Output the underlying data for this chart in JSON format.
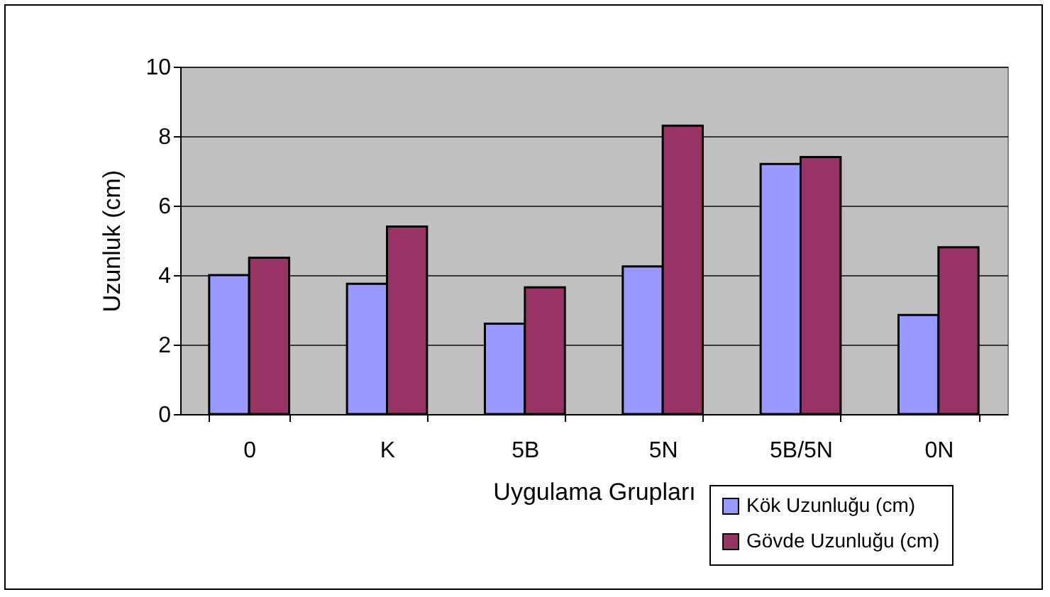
{
  "chart_data": {
    "type": "bar",
    "xlabel": "Uygulama Grupları",
    "ylabel": "Uzunluk (cm)",
    "categories": [
      "0",
      "K",
      "5B",
      "5N",
      "5B/5N",
      "0N"
    ],
    "series": [
      {
        "name": "Kök Uzunluğu (cm)",
        "color": "#9999ff",
        "values": [
          4.0,
          3.75,
          2.6,
          4.25,
          7.2,
          2.85
        ]
      },
      {
        "name": "Gövde Uzunluğu (cm)",
        "color": "#993366",
        "values": [
          4.5,
          5.4,
          3.65,
          8.3,
          7.4,
          4.8
        ]
      }
    ],
    "ylim": [
      0,
      10
    ],
    "yticks": [
      0,
      2,
      4,
      6,
      8,
      10
    ],
    "grid": "y",
    "legend": "bottom right"
  }
}
